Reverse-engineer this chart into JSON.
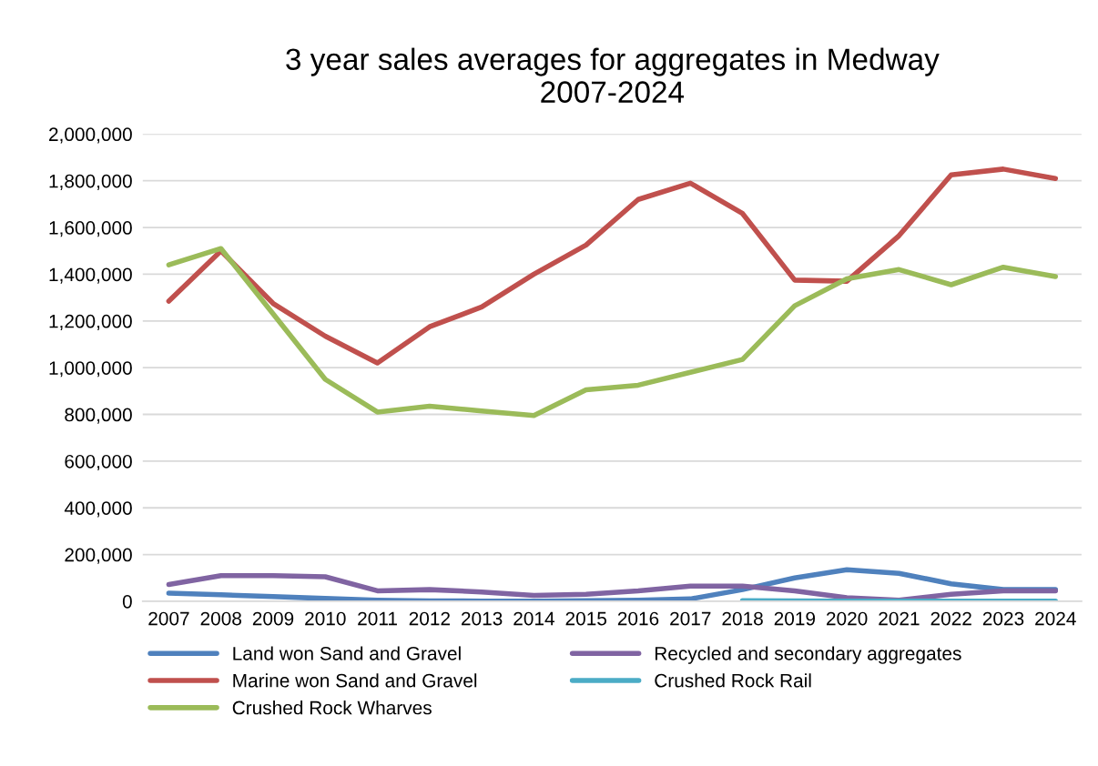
{
  "chart_data": {
    "type": "line",
    "title": "3 year sales averages for aggregates in Medway\n2007-2024",
    "categories": [
      "2007",
      "2008",
      "2009",
      "2010",
      "2011",
      "2012",
      "2013",
      "2014",
      "2015",
      "2016",
      "2017",
      "2018",
      "2019",
      "2020",
      "2021",
      "2022",
      "2023",
      "2024"
    ],
    "series": [
      {
        "name": "Land won Sand and Gravel",
        "color": "#4f81bd",
        "values": [
          35000,
          28000,
          20000,
          12000,
          5000,
          2000,
          1000,
          1000,
          3000,
          5000,
          10000,
          50000,
          100000,
          135000,
          120000,
          75000,
          50000,
          50000
        ]
      },
      {
        "name": "Marine won Sand and Gravel",
        "color": "#c0504d",
        "values": [
          1285000,
          1500000,
          1275000,
          1135000,
          1020000,
          1175000,
          1260000,
          1400000,
          1525000,
          1720000,
          1790000,
          1660000,
          1375000,
          1370000,
          1565000,
          1825000,
          1850000,
          1810000
        ]
      },
      {
        "name": "Crushed Rock Wharves",
        "color": "#9bbb59",
        "values": [
          1440000,
          1510000,
          1230000,
          950000,
          810000,
          835000,
          815000,
          795000,
          905000,
          925000,
          980000,
          1035000,
          1265000,
          1380000,
          1420000,
          1355000,
          1430000,
          1390000
        ]
      },
      {
        "name": "Recycled and secondary aggregates",
        "color": "#8064a2",
        "values": [
          72000,
          110000,
          110000,
          105000,
          45000,
          50000,
          40000,
          25000,
          30000,
          45000,
          65000,
          65000,
          45000,
          15000,
          5000,
          30000,
          45000,
          45000
        ]
      },
      {
        "name": "Crushed Rock Rail",
        "color": "#4bacc6",
        "values": [
          null,
          null,
          null,
          null,
          null,
          null,
          null,
          null,
          null,
          null,
          null,
          3000,
          2000,
          1000,
          1000,
          1000,
          1000,
          1000
        ]
      }
    ],
    "ylim": [
      0,
      2000000
    ],
    "yticks": [
      {
        "value": 0,
        "label": "0"
      },
      {
        "value": 200000,
        "label": "200,000"
      },
      {
        "value": 400000,
        "label": "400,000"
      },
      {
        "value": 600000,
        "label": "600,000"
      },
      {
        "value": 800000,
        "label": "800,000"
      },
      {
        "value": 1000000,
        "label": "1,000,000"
      },
      {
        "value": 1200000,
        "label": "1,200,000"
      },
      {
        "value": 1400000,
        "label": "1,400,000"
      },
      {
        "value": 1600000,
        "label": "1,600,000"
      },
      {
        "value": 1800000,
        "label": "1,800,000"
      },
      {
        "value": 2000000,
        "label": "2,000,000"
      }
    ],
    "grid": "y",
    "legend": "bottom",
    "marker": "none",
    "line_style": "solid"
  }
}
